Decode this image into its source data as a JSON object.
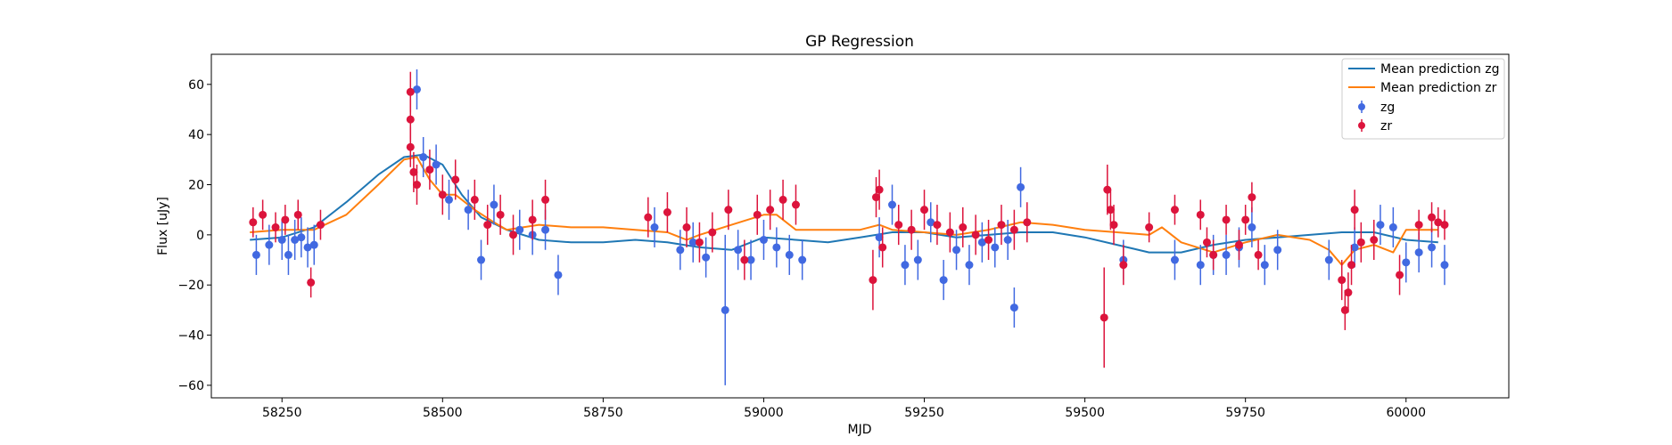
{
  "chart_data": {
    "type": "scatter",
    "title": "GP Regression",
    "xlabel": "MJD",
    "ylabel": "Flux [uJy]",
    "xlim": [
      58140,
      60160
    ],
    "ylim": [
      -65,
      72
    ],
    "xticks": [
      58250,
      58500,
      58750,
      59000,
      59250,
      59500,
      59750,
      60000
    ],
    "yticks": [
      -60,
      -40,
      -20,
      0,
      20,
      40,
      60
    ],
    "grid": false,
    "legend_position": "top-right",
    "legend": [
      "Mean prediction zg",
      "Mean prediction zr",
      "zg",
      "zr"
    ],
    "colors": {
      "zg_line": "#1f77b4",
      "zr_line": "#ff7f0e",
      "zg_points": "#4169e1",
      "zr_points": "#dc143c"
    },
    "series": [
      {
        "name": "Mean prediction zg",
        "kind": "line",
        "x": [
          58200,
          58250,
          58300,
          58350,
          58400,
          58440,
          58470,
          58500,
          58530,
          58560,
          58600,
          58650,
          58700,
          58750,
          58800,
          58850,
          58900,
          58950,
          59000,
          59050,
          59100,
          59150,
          59200,
          59250,
          59300,
          59350,
          59400,
          59450,
          59500,
          59550,
          59600,
          59650,
          59700,
          59750,
          59800,
          59850,
          59900,
          59950,
          60000,
          60050
        ],
        "y": [
          -2,
          -1,
          3,
          13,
          24,
          31,
          32,
          28,
          16,
          7,
          2,
          -2,
          -3,
          -3,
          -2,
          -3,
          -5,
          -6,
          -1,
          -2,
          -3,
          -1,
          1,
          1,
          -1,
          0,
          1,
          1,
          -1,
          -4,
          -7,
          -7,
          -4,
          -2,
          -1,
          0,
          1,
          1,
          -2,
          -3
        ]
      },
      {
        "name": "Mean prediction zr",
        "kind": "line",
        "x": [
          58200,
          58250,
          58300,
          58350,
          58400,
          58440,
          58460,
          58480,
          58500,
          58520,
          58550,
          58580,
          58600,
          58650,
          58700,
          58750,
          58800,
          58850,
          58880,
          58900,
          58950,
          59000,
          59020,
          59050,
          59100,
          59150,
          59180,
          59200,
          59250,
          59300,
          59350,
          59400,
          59450,
          59500,
          59550,
          59600,
          59620,
          59650,
          59700,
          59750,
          59800,
          59850,
          59880,
          59900,
          59920,
          59950,
          59980,
          60000,
          60050
        ],
        "y": [
          1,
          2,
          2,
          8,
          20,
          30,
          31,
          22,
          16,
          16,
          10,
          5,
          2,
          4,
          3,
          3,
          2,
          1,
          -2,
          0,
          4,
          8,
          8,
          2,
          2,
          2,
          4,
          2,
          1,
          0,
          2,
          5,
          4,
          2,
          1,
          0,
          3,
          -3,
          -7,
          -3,
          0,
          -2,
          -6,
          -12,
          -6,
          -4,
          -7,
          2,
          2
        ]
      },
      {
        "name": "zg",
        "kind": "errorbar",
        "x": [
          58210,
          58230,
          58250,
          58260,
          58270,
          58280,
          58290,
          58300,
          58460,
          58470,
          58490,
          58510,
          58540,
          58560,
          58580,
          58620,
          58640,
          58660,
          58680,
          58830,
          58870,
          58890,
          58910,
          58940,
          58960,
          58980,
          59000,
          59020,
          59040,
          59060,
          59180,
          59200,
          59220,
          59240,
          59260,
          59280,
          59300,
          59320,
          59340,
          59360,
          59380,
          59390,
          59400,
          59560,
          59640,
          59680,
          59700,
          59720,
          59740,
          59760,
          59780,
          59800,
          59880,
          59920,
          59960,
          59980,
          60000,
          60020,
          60040,
          60060
        ],
        "y": [
          -8,
          -4,
          -2,
          -8,
          -2,
          -1,
          -5,
          -4,
          58,
          31,
          28,
          14,
          10,
          -10,
          12,
          2,
          0,
          2,
          -16,
          3,
          -6,
          -3,
          -9,
          -30,
          -6,
          -10,
          -2,
          -5,
          -8,
          -10,
          -1,
          12,
          -12,
          -10,
          5,
          -18,
          -6,
          -12,
          -3,
          -5,
          -2,
          -29,
          19,
          -10,
          -10,
          -12,
          -8,
          -8,
          -5,
          3,
          -12,
          -6,
          -10,
          -5,
          4,
          3,
          -11,
          -7,
          -5,
          -12
        ],
        "yerr": [
          8,
          8,
          8,
          8,
          8,
          8,
          8,
          8,
          8,
          8,
          8,
          8,
          8,
          8,
          8,
          8,
          8,
          8,
          8,
          8,
          8,
          8,
          8,
          30,
          8,
          8,
          8,
          8,
          8,
          8,
          8,
          8,
          8,
          8,
          8,
          8,
          8,
          8,
          8,
          8,
          8,
          8,
          8,
          8,
          8,
          8,
          8,
          8,
          8,
          8,
          8,
          8,
          8,
          8,
          8,
          8,
          8,
          8,
          8,
          8
        ]
      },
      {
        "name": "zr",
        "kind": "errorbar",
        "x": [
          58205,
          58220,
          58240,
          58255,
          58275,
          58295,
          58310,
          58450,
          58450,
          58450,
          58455,
          58460,
          58480,
          58500,
          58520,
          58550,
          58570,
          58590,
          58610,
          58640,
          58660,
          58820,
          58850,
          58880,
          58900,
          58920,
          58945,
          58970,
          58990,
          59010,
          59030,
          59050,
          59170,
          59175,
          59180,
          59185,
          59210,
          59230,
          59250,
          59270,
          59290,
          59310,
          59330,
          59350,
          59370,
          59390,
          59410,
          59530,
          59535,
          59540,
          59545,
          59560,
          59600,
          59640,
          59680,
          59690,
          59700,
          59720,
          59740,
          59750,
          59760,
          59770,
          59900,
          59905,
          59910,
          59915,
          59920,
          59930,
          59950,
          59990,
          60020,
          60040,
          60050,
          60060
        ],
        "y": [
          5,
          8,
          3,
          6,
          8,
          -19,
          4,
          57,
          46,
          35,
          25,
          20,
          26,
          16,
          22,
          14,
          4,
          8,
          0,
          6,
          14,
          7,
          9,
          3,
          -3,
          1,
          10,
          -10,
          8,
          10,
          14,
          12,
          -18,
          15,
          18,
          -5,
          4,
          2,
          10,
          4,
          1,
          3,
          0,
          -2,
          4,
          2,
          5,
          -33,
          18,
          10,
          4,
          -12,
          3,
          10,
          8,
          -3,
          -8,
          6,
          -4,
          6,
          15,
          -8,
          -18,
          -30,
          -23,
          -12,
          10,
          -3,
          -2,
          -16,
          4,
          7,
          5,
          4
        ],
        "yerr": [
          6,
          6,
          6,
          6,
          6,
          6,
          6,
          8,
          8,
          8,
          8,
          8,
          8,
          8,
          8,
          8,
          8,
          8,
          8,
          8,
          8,
          8,
          8,
          8,
          8,
          8,
          8,
          8,
          8,
          8,
          8,
          8,
          12,
          8,
          8,
          8,
          8,
          8,
          8,
          8,
          8,
          8,
          8,
          8,
          8,
          8,
          8,
          20,
          10,
          8,
          8,
          8,
          6,
          6,
          6,
          6,
          6,
          6,
          6,
          6,
          6,
          6,
          8,
          8,
          8,
          8,
          8,
          8,
          8,
          8,
          6,
          6,
          6,
          6
        ]
      }
    ]
  }
}
